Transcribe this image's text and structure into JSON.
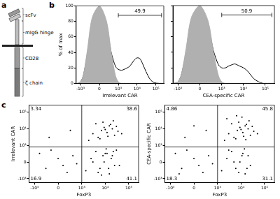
{
  "panel_labels": [
    "a",
    "b",
    "c"
  ],
  "diagram": {
    "parts": [
      "scFv",
      "mIgG hinge",
      "CD28",
      "ζ chain"
    ]
  },
  "chart_data": [
    {
      "type": "line",
      "x_label": "Irrelevant CAR",
      "y_label": "% of max",
      "x": [
        -1500,
        -1000,
        -700,
        -400,
        -200,
        0,
        200,
        400,
        700,
        1000,
        1500,
        2000,
        3000,
        4000,
        5000,
        7000,
        10000,
        14000,
        20000,
        30000,
        50000,
        80000,
        150000,
        262144
      ],
      "series": [
        {
          "type": "area",
          "color": "#b0b0b0",
          "values": [
            0,
            2,
            10,
            45,
            85,
            100,
            80,
            40,
            10,
            2,
            0,
            0,
            0,
            0,
            0,
            0,
            0,
            0,
            0,
            0,
            0,
            0,
            0,
            0
          ]
        },
        {
          "type": "line",
          "color": "#000000",
          "values": [
            0,
            2,
            10,
            40,
            75,
            85,
            70,
            40,
            22,
            18,
            17,
            18,
            20,
            22,
            25,
            30,
            33,
            32,
            25,
            15,
            5,
            1,
            0,
            0
          ]
        }
      ],
      "xlim": [
        -1700,
        262144
      ],
      "xticks": [
        {
          "value": -1000,
          "label": "-10³"
        },
        0,
        {
          "value": 1000,
          "label": "10³"
        },
        {
          "value": 10000,
          "label": "10⁴"
        },
        {
          "value": 100000,
          "label": "10⁵"
        }
      ],
      "ylim": [
        0,
        100
      ],
      "yticks": [
        0,
        20,
        40,
        60,
        80,
        100
      ],
      "grid": false,
      "gate": {
        "value": 49.9,
        "x": [
          1000,
          200000
        ],
        "y": 88
      }
    },
    {
      "type": "line",
      "x_label": "CEA-specific CAR",
      "x": [
        -1500,
        -1000,
        -700,
        -400,
        -200,
        0,
        200,
        400,
        700,
        1000,
        1500,
        2000,
        3000,
        4000,
        5000,
        7000,
        10000,
        14000,
        20000,
        30000,
        50000,
        80000,
        150000,
        262144
      ],
      "series": [
        {
          "type": "area",
          "color": "#b0b0b0",
          "values": [
            0,
            2,
            10,
            45,
            85,
            100,
            80,
            40,
            10,
            2,
            0,
            0,
            0,
            0,
            0,
            0,
            0,
            0,
            0,
            0,
            0,
            0,
            0,
            0
          ]
        },
        {
          "type": "line",
          "color": "#000000",
          "values": [
            0,
            2,
            10,
            40,
            75,
            88,
            72,
            42,
            24,
            20,
            20,
            22,
            24,
            25,
            24,
            22,
            20,
            17,
            12,
            6,
            2,
            0,
            0,
            0
          ]
        }
      ],
      "xlim": [
        -1700,
        262144
      ],
      "xticks": [
        {
          "value": -1000,
          "label": "-10³"
        },
        0,
        {
          "value": 1000,
          "label": "10³"
        },
        {
          "value": 10000,
          "label": "10⁴"
        },
        {
          "value": 100000,
          "label": "10⁵"
        }
      ],
      "ylim": [
        0,
        100
      ],
      "yticks": [
        0,
        20,
        40,
        60,
        80,
        100
      ],
      "grid": false,
      "tick_labels": "x",
      "gate": {
        "value": 50.9,
        "x": [
          1000,
          200000
        ],
        "y": 88
      }
    },
    {
      "type": "scatter",
      "x_label": "FoxP3",
      "y_label": "Irrelevant CAR",
      "color": "#000000",
      "x": [
        -300,
        0,
        200,
        -600,
        400,
        100,
        -150,
        600,
        -200,
        300,
        1500,
        2500,
        4000,
        6000,
        9000,
        12000,
        15000,
        20000,
        25000,
        30000,
        3000,
        5000,
        8000,
        11000,
        14000,
        18000,
        22000,
        40000,
        7000,
        10000,
        2000,
        3000,
        5000,
        7000,
        9000,
        12000,
        15000,
        20000,
        25000,
        35000,
        4000,
        6000,
        8000,
        10000,
        13000,
        17000,
        22000,
        50000,
        30000
      ],
      "values": [
        -200,
        100,
        -400,
        300,
        200,
        -100,
        500,
        -50,
        3000,
        8000,
        -300,
        100,
        400,
        -200,
        0,
        300,
        -500,
        200,
        -100,
        500,
        0,
        -400,
        200,
        600,
        -200,
        100,
        400,
        -100,
        -600,
        300,
        2000,
        5000,
        3000,
        8000,
        12000,
        6000,
        15000,
        10000,
        4000,
        7000,
        20000,
        2500,
        25000,
        9000,
        3500,
        18000,
        30000,
        5000,
        14000
      ],
      "xlim": [
        -1700,
        262144
      ],
      "xticks": [
        {
          "value": -1000,
          "label": "-10³"
        },
        0,
        {
          "value": 1000,
          "label": "10³"
        },
        {
          "value": 10000,
          "label": "10⁴"
        },
        {
          "value": 100000,
          "label": "10⁵"
        }
      ],
      "ylim": [
        -1700,
        262144
      ],
      "yticks": [
        {
          "value": -1000,
          "label": "-10³"
        },
        0,
        {
          "value": 1000,
          "label": "10³"
        },
        {
          "value": 10000,
          "label": "10⁴"
        },
        {
          "value": 100000,
          "label": "10⁵"
        }
      ],
      "grid": false,
      "quadrant": {
        "x": 1000,
        "y": 800,
        "values": [
          3.34,
          38.6,
          16.9,
          41.1
        ]
      }
    },
    {
      "type": "scatter",
      "x_label": "FoxP3",
      "y_label": "CEA-specific CAR",
      "color": "#000000",
      "x": [
        -300,
        0,
        200,
        -600,
        400,
        100,
        -150,
        600,
        -400,
        -200,
        300,
        0,
        1500,
        2500,
        4000,
        6000,
        9000,
        12000,
        15000,
        20000,
        25000,
        3000,
        5000,
        8000,
        11000,
        14000,
        18000,
        2000,
        3000,
        5000,
        7000,
        9000,
        12000,
        15000,
        20000,
        25000,
        35000,
        4000,
        6000,
        8000,
        10000,
        13000,
        17000,
        22000,
        50000,
        30000,
        2500,
        11000,
        16000,
        6500
      ],
      "values": [
        -200,
        100,
        -400,
        300,
        200,
        -100,
        500,
        -50,
        -500,
        3000,
        8000,
        15000,
        -300,
        100,
        400,
        -200,
        0,
        300,
        -500,
        200,
        -100,
        500,
        0,
        -400,
        200,
        600,
        -200,
        2000,
        5000,
        3000,
        8000,
        12000,
        6000,
        15000,
        10000,
        4000,
        7000,
        20000,
        2500,
        25000,
        9000,
        3500,
        18000,
        30000,
        5000,
        14000,
        40000,
        50000,
        2200,
        60000
      ],
      "xlim": [
        -1700,
        262144
      ],
      "xticks": [
        {
          "value": -1000,
          "label": "-10³"
        },
        0,
        {
          "value": 1000,
          "label": "10³"
        },
        {
          "value": 10000,
          "label": "10⁴"
        },
        {
          "value": 100000,
          "label": "10⁵"
        }
      ],
      "ylim": [
        -1700,
        262144
      ],
      "yticks": [
        {
          "value": -1000,
          "label": "-10³"
        },
        0,
        {
          "value": 1000,
          "label": "10³"
        },
        {
          "value": 10000,
          "label": "10⁴"
        },
        {
          "value": 100000,
          "label": "10⁵"
        }
      ],
      "grid": false,
      "quadrant": {
        "x": 1000,
        "y": 800,
        "values": [
          4.86,
          45.8,
          18.3,
          31.1
        ]
      }
    }
  ]
}
